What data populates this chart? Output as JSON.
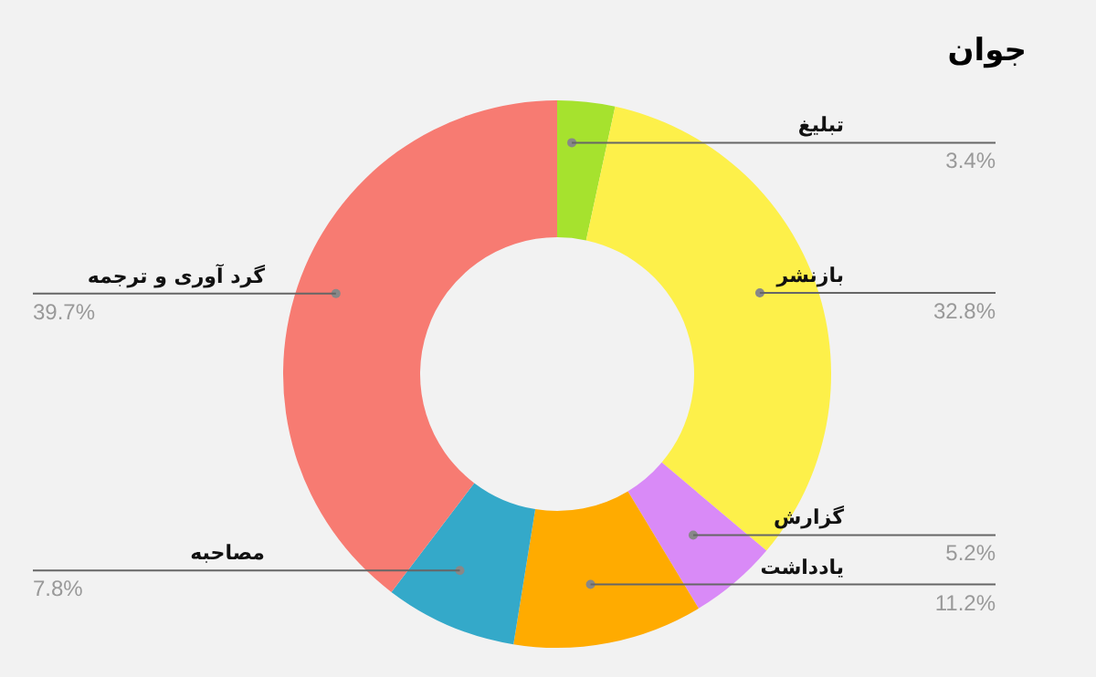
{
  "chart_data": {
    "type": "donut",
    "title": "جوان",
    "categories": [
      "تبلیغ",
      "بازنشر",
      "گزارش",
      "یادداشت",
      "مصاحبه",
      "گرد آوری و ترجمه"
    ],
    "values": [
      3.4,
      32.8,
      5.2,
      11.2,
      7.8,
      39.7
    ],
    "colors": [
      "#a6e22e",
      "#fdf04a",
      "#d98af7",
      "#ffab00",
      "#34a9c9",
      "#f77b72"
    ],
    "value_labels": [
      "3.4%",
      "32.8%",
      "5.2%",
      "11.2%",
      "7.8%",
      "39.7%"
    ],
    "legend": false
  }
}
